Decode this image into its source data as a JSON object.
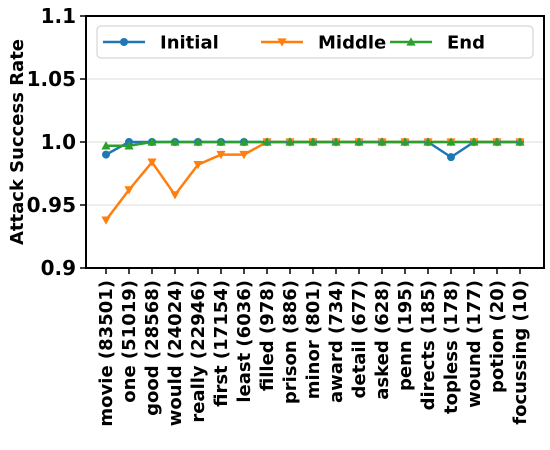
{
  "chart_data": {
    "type": "line",
    "ylabel": "Attack Success Rate",
    "xlabel": "",
    "ylim": [
      0.9,
      1.1
    ],
    "yticks": [
      "0.9",
      "0.95",
      "1.0",
      "1.05",
      "1.1"
    ],
    "ytick_values": [
      0.9,
      0.95,
      1.0,
      1.05,
      1.1
    ],
    "grid": "horizontal",
    "legend_position": "top",
    "categories": [
      "movie (83501)",
      "one (51019)",
      "good (28568)",
      "would (24024)",
      "really (22946)",
      "first (17154)",
      "least (6036)",
      "filled (978)",
      "prison (886)",
      "minor (801)",
      "award (734)",
      "detail (677)",
      "asked (628)",
      "penn (195)",
      "directs (185)",
      "topless (178)",
      "wound (177)",
      "potion (20)",
      "focussing (10)"
    ],
    "series": [
      {
        "name": "Initial",
        "color": "#1f77b4",
        "marker": "circle",
        "values": [
          0.99,
          1.0,
          1.0,
          1.0,
          1.0,
          1.0,
          1.0,
          1.0,
          1.0,
          1.0,
          1.0,
          1.0,
          1.0,
          1.0,
          1.0,
          0.988,
          1.0,
          1.0,
          1.0
        ]
      },
      {
        "name": "Middle",
        "color": "#ff7f0e",
        "marker": "triangle-down",
        "values": [
          0.938,
          0.962,
          0.984,
          0.958,
          0.982,
          0.99,
          0.99,
          1.0,
          1.0,
          1.0,
          1.0,
          1.0,
          1.0,
          1.0,
          1.0,
          1.0,
          1.0,
          1.0,
          1.0
        ]
      },
      {
        "name": "End",
        "color": "#2ca02c",
        "marker": "triangle-up",
        "values": [
          0.997,
          0.997,
          1.0,
          1.0,
          1.0,
          1.0,
          1.0,
          1.0,
          1.0,
          1.0,
          1.0,
          1.0,
          1.0,
          1.0,
          1.0,
          1.0,
          1.0,
          1.0,
          1.0
        ]
      }
    ]
  }
}
